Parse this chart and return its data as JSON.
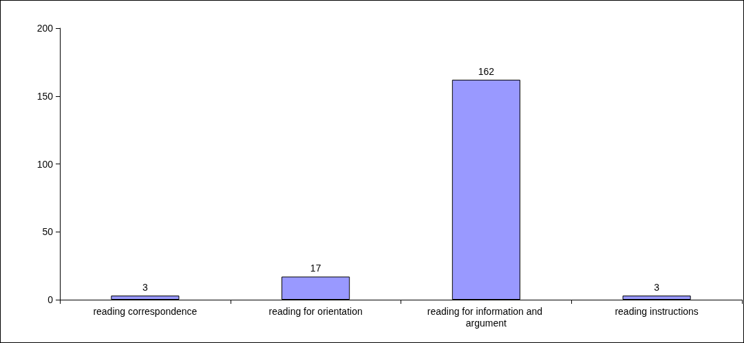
{
  "chart_data": {
    "type": "bar",
    "categories": [
      "reading correspondence",
      "reading for orientation",
      "reading for information and argument",
      "reading instructions"
    ],
    "values": [
      3,
      17,
      162,
      3
    ],
    "color": "#9999ff",
    "ylim": [
      0,
      200
    ],
    "yticks": [
      0,
      50,
      100,
      150,
      200
    ],
    "data_labels": true
  }
}
